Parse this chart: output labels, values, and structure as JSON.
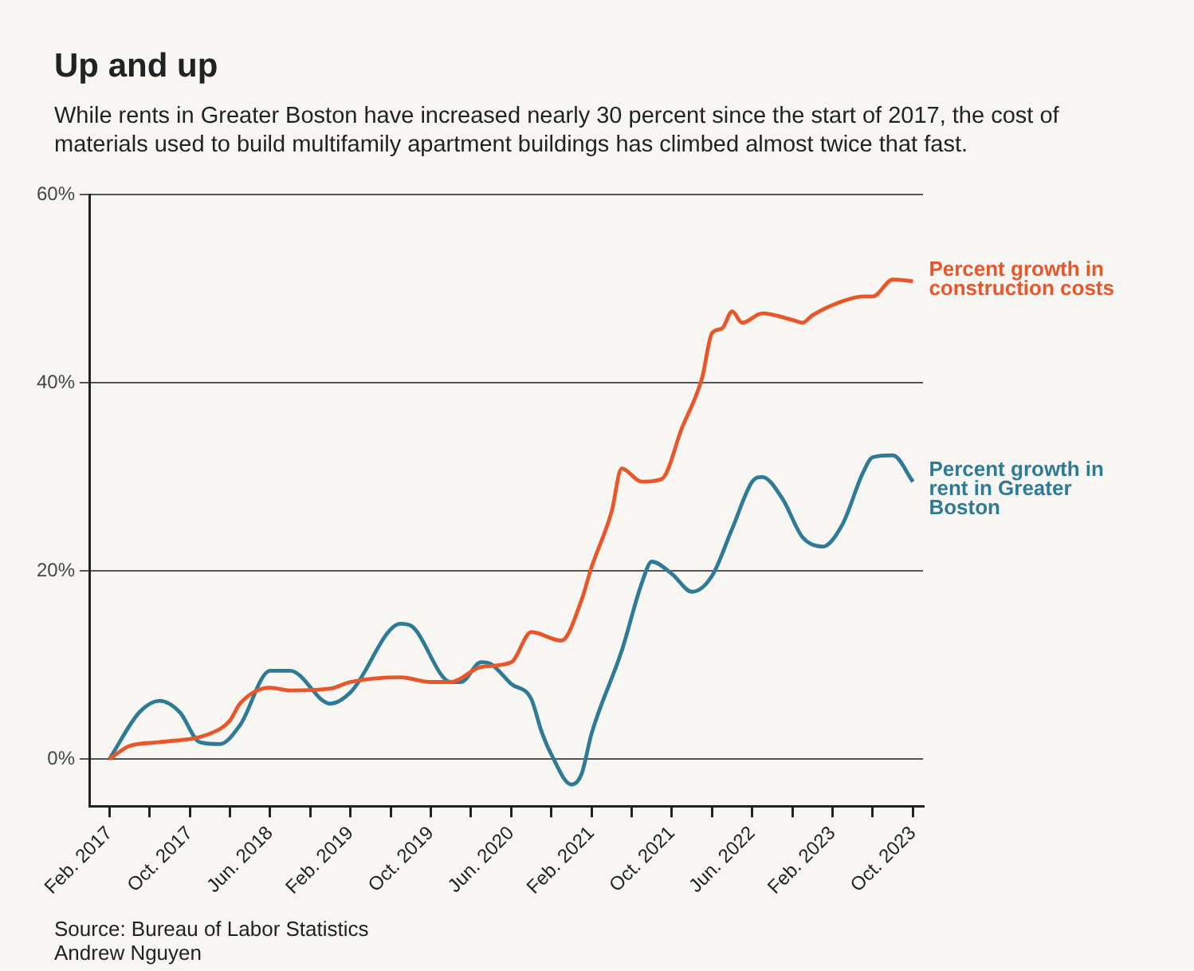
{
  "chart_data": {
    "type": "line",
    "title": "Up and up",
    "subtitle": "While rents in Greater Boston have increased nearly 30 percent since the start of 2017, the cost of materials used to build multifamily apartment buildings has climbed almost twice that fast.",
    "annotations": [
      "Source: Bureau of Labor Statistics",
      "Andrew Nguyen"
    ],
    "xlim": [
      "2016-12",
      "2023-11"
    ],
    "xticks": [
      {
        "value": "2017-02",
        "label": "Feb. 2017"
      },
      {
        "value": "2017-06",
        "label": null
      },
      {
        "value": "2017-10",
        "label": "Oct. 2017"
      },
      {
        "value": "2018-02",
        "label": null
      },
      {
        "value": "2018-06",
        "label": "Jun. 2018"
      },
      {
        "value": "2018-10",
        "label": null
      },
      {
        "value": "2019-02",
        "label": "Feb. 2019"
      },
      {
        "value": "2019-06",
        "label": null
      },
      {
        "value": "2019-10",
        "label": "Oct. 2019"
      },
      {
        "value": "2020-02",
        "label": null
      },
      {
        "value": "2020-06",
        "label": "Jun. 2020"
      },
      {
        "value": "2020-10",
        "label": null
      },
      {
        "value": "2021-02",
        "label": "Feb. 2021"
      },
      {
        "value": "2021-06",
        "label": null
      },
      {
        "value": "2021-10",
        "label": "Oct. 2021"
      },
      {
        "value": "2022-02",
        "label": null
      },
      {
        "value": "2022-06",
        "label": "Jun. 2022"
      },
      {
        "value": "2022-10",
        "label": null
      },
      {
        "value": "2023-02",
        "label": "Feb. 2023"
      },
      {
        "value": "2023-06",
        "label": null
      },
      {
        "value": "2023-10",
        "label": "Oct. 2023"
      }
    ],
    "ylim": [
      -5,
      60
    ],
    "yticks": [
      {
        "value": 0,
        "label": "0%"
      },
      {
        "value": 20,
        "label": "20%"
      },
      {
        "value": 40,
        "label": "40%"
      },
      {
        "value": 60,
        "label": "60%"
      }
    ],
    "grid": "y",
    "legend": false,
    "marker": "none",
    "line_style": "solid",
    "series": [
      {
        "name": "Percent growth in construction costs",
        "color": "#e8562a",
        "x": [
          "2017-02",
          "2017-04",
          "2017-07",
          "2017-12",
          "2018-02",
          "2018-03",
          "2018-06",
          "2018-08",
          "2018-12",
          "2019-02",
          "2019-07",
          "2019-10",
          "2019-12",
          "2020-03",
          "2020-06",
          "2020-08",
          "2020-11",
          "2021-01",
          "2021-02",
          "2021-04",
          "2021-05",
          "2021-07",
          "2021-09",
          "2021-11",
          "2022-01",
          "2022-02",
          "2022-03",
          "2022-04",
          "2022-05",
          "2022-07",
          "2022-10",
          "2022-11",
          "2022-12",
          "2023-03",
          "2023-05",
          "2023-06",
          "2023-08",
          "2023-10"
        ],
        "values": [
          0,
          1.4,
          1.8,
          2.7,
          4.1,
          5.9,
          7.6,
          7.3,
          7.5,
          8.2,
          8.7,
          8.2,
          8.2,
          9.8,
          10.3,
          13.5,
          12.6,
          16.9,
          20.4,
          26.3,
          30.9,
          29.5,
          29.8,
          35.2,
          40.5,
          45.3,
          45.8,
          47.6,
          46.4,
          47.4,
          46.7,
          46.4,
          47.2,
          48.7,
          49.2,
          49.2,
          51,
          50.8
        ]
      },
      {
        "name": "Percent growth in rent in Greater Boston",
        "color": "#2f7a95",
        "x": [
          "2017-02",
          "2017-05",
          "2017-07",
          "2017-09",
          "2017-11",
          "2018-01",
          "2018-03",
          "2018-06",
          "2018-08",
          "2018-12",
          "2019-02",
          "2019-07",
          "2019-08",
          "2019-12",
          "2020-01",
          "2020-03",
          "2020-04",
          "2020-06",
          "2020-08",
          "2020-09",
          "2020-10",
          "2020-12",
          "2021-01",
          "2021-02",
          "2021-05",
          "2021-07",
          "2021-08",
          "2021-10",
          "2021-12",
          "2022-02",
          "2022-04",
          "2022-06",
          "2022-07",
          "2022-09",
          "2022-11",
          "2023-01",
          "2023-03",
          "2023-05",
          "2023-06",
          "2023-08",
          "2023-10"
        ],
        "values": [
          0,
          5.0,
          6.2,
          5.0,
          1.8,
          1.6,
          3.6,
          9.4,
          9.4,
          5.9,
          7.1,
          14.4,
          14.2,
          8.2,
          8.2,
          10.3,
          10.1,
          8.0,
          6.4,
          3.0,
          0.5,
          -2.7,
          -1.6,
          2.7,
          11.5,
          18.7,
          21,
          19.7,
          17.8,
          19.5,
          24.5,
          29.5,
          30,
          27.7,
          23.6,
          22.6,
          25,
          30.4,
          32.1,
          32.3,
          29.5
        ]
      }
    ]
  }
}
